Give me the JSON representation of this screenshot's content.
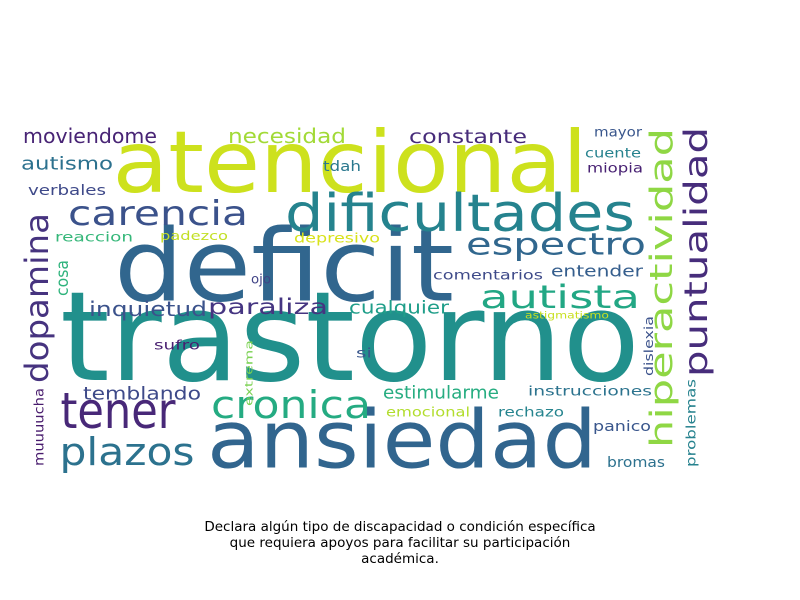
{
  "words": [
    {
      "text": "trastorno",
      "color": "#21908c"
    },
    {
      "text": "deficit",
      "color": "#31668e"
    },
    {
      "text": "atencional",
      "color": "#cde11d"
    },
    {
      "text": "ansiedad",
      "color": "#31658e"
    },
    {
      "text": "dificultades",
      "color": "#25838e"
    },
    {
      "text": "tener",
      "color": "#482878"
    },
    {
      "text": "cronica",
      "color": "#25ab82"
    },
    {
      "text": "plazos",
      "color": "#2c728e"
    },
    {
      "text": "carencia",
      "color": "#3b528b"
    },
    {
      "text": "espectro",
      "color": "#31678e"
    },
    {
      "text": "autista",
      "color": "#22a784"
    },
    {
      "text": "dopamina",
      "color": "#46337f"
    },
    {
      "text": "hiperactividad",
      "color": "#8fd744"
    },
    {
      "text": "puntualidad",
      "color": "#472d7b"
    },
    {
      "text": "paraliza",
      "color": "#453581"
    },
    {
      "text": "cualquier",
      "color": "#1f9e89"
    },
    {
      "text": "inquietud",
      "color": "#3b528b"
    },
    {
      "text": "moviendome",
      "color": "#482475"
    },
    {
      "text": "necesidad",
      "color": "#a2da37"
    },
    {
      "text": "constante",
      "color": "#472c7a"
    },
    {
      "text": "autismo",
      "color": "#2c718e"
    },
    {
      "text": "temblando",
      "color": "#3e4a89"
    },
    {
      "text": "estimularme",
      "color": "#27ad81"
    },
    {
      "text": "entender",
      "color": "#355e8d"
    },
    {
      "text": "cosa",
      "color": "#2eb37c"
    },
    {
      "text": "verbales",
      "color": "#3e4989"
    },
    {
      "text": "reaccion",
      "color": "#35b779"
    },
    {
      "text": "padezco",
      "color": "#c2df23"
    },
    {
      "text": "depresivo",
      "color": "#d8e219"
    },
    {
      "text": "tdah",
      "color": "#2a788e"
    },
    {
      "text": "ojo",
      "color": "#414487"
    },
    {
      "text": "comentarios",
      "color": "#3e4a89"
    },
    {
      "text": "mayor",
      "color": "#39568c"
    },
    {
      "text": "cuente",
      "color": "#26828e"
    },
    {
      "text": "miopia",
      "color": "#482173"
    },
    {
      "text": "sufro",
      "color": "#481f70"
    },
    {
      "text": "si",
      "color": "#39568c"
    },
    {
      "text": "extrema",
      "color": "#7ad151"
    },
    {
      "text": "astigmatismo",
      "color": "#c8e020"
    },
    {
      "text": "dislexia",
      "color": "#3b528b"
    },
    {
      "text": "instrucciones",
      "color": "#2c738e"
    },
    {
      "text": "emocional",
      "color": "#b2dd2d"
    },
    {
      "text": "rechazo",
      "color": "#25848e"
    },
    {
      "text": "panico",
      "color": "#39568c"
    },
    {
      "text": "muuuucha",
      "color": "#481b6d"
    },
    {
      "text": "problemas",
      "color": "#26828e"
    },
    {
      "text": "bromas",
      "color": "#2c718e"
    }
  ],
  "caption": {
    "line1": "Declara algún tipo de discapacidad o condición específica",
    "line2": "que requiera apoyos para facilitar su participación",
    "line3": "académica."
  }
}
